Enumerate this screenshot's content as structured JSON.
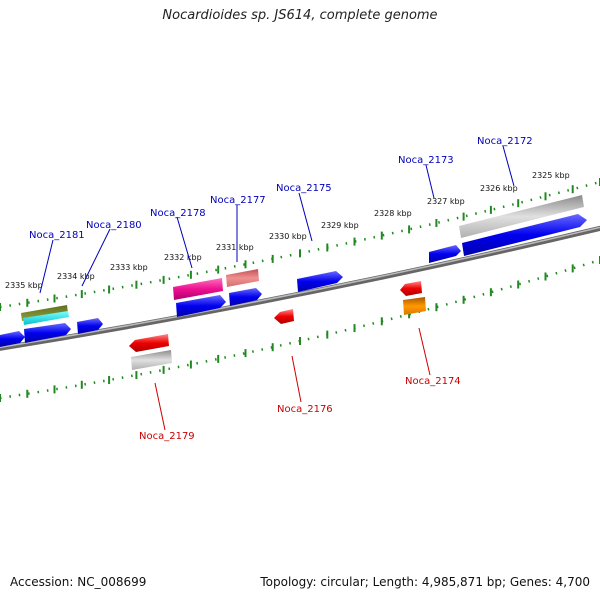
{
  "title": "Nocardioides sp. JS614, complete genome",
  "footer": {
    "accession": "Accession: NC_008699",
    "topology": "Topology: circular; Length: 4,985,871 bp; Genes: 4,700"
  },
  "colors": {
    "plus_label": "#0000bb",
    "minus_label": "#cc0000",
    "ticks": "#228822",
    "backbone": "#777777"
  },
  "scale": {
    "labels": [
      "2325 kbp",
      "2326 kbp",
      "2327 kbp",
      "2328 kbp",
      "2329 kbp",
      "2330 kbp",
      "2331 kbp",
      "2332 kbp",
      "2333 kbp",
      "2334 kbp",
      "2335 kbp"
    ]
  },
  "genes": [
    {
      "label": "Noca_2172",
      "strand": "plus"
    },
    {
      "label": "Noca_2173",
      "strand": "plus"
    },
    {
      "label": "Noca_2174",
      "strand": "minus"
    },
    {
      "label": "Noca_2175",
      "strand": "plus"
    },
    {
      "label": "Noca_2176",
      "strand": "minus"
    },
    {
      "label": "Noca_2177",
      "strand": "plus"
    },
    {
      "label": "Noca_2178",
      "strand": "plus"
    },
    {
      "label": "Noca_2179",
      "strand": "minus"
    },
    {
      "label": "Noca_2180",
      "strand": "plus"
    },
    {
      "label": "Noca_2181",
      "strand": "plus"
    }
  ]
}
